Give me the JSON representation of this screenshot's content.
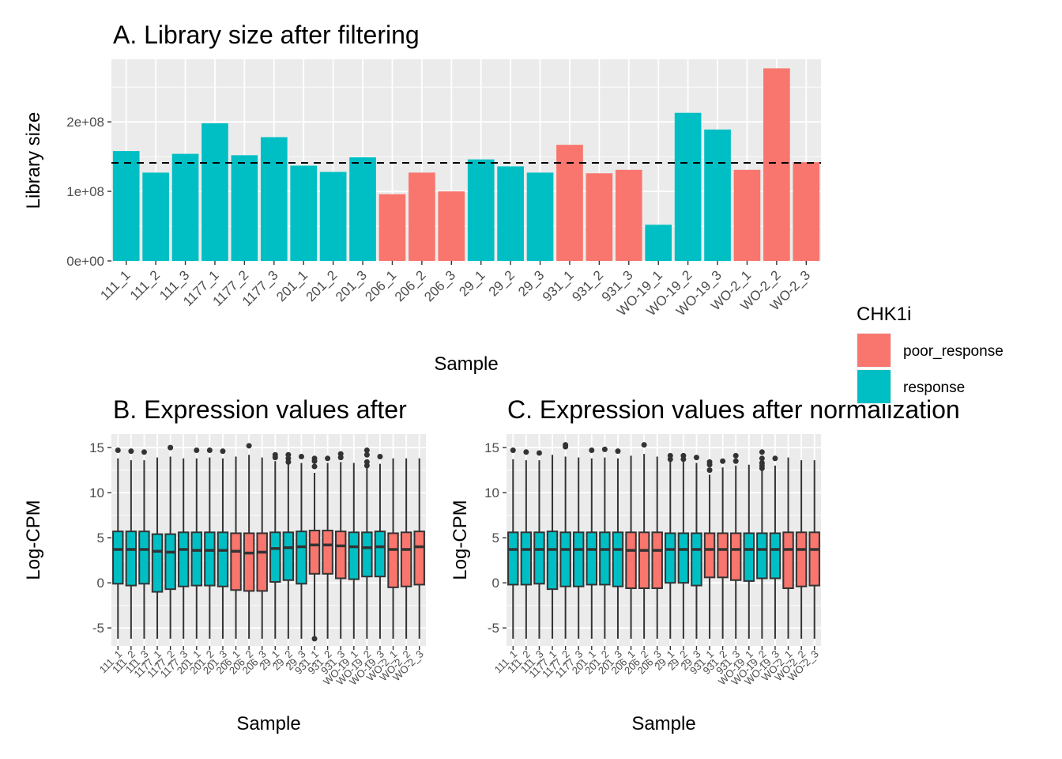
{
  "legend": {
    "title": "CHK1i",
    "entries": [
      {
        "label": "poor_response",
        "color": "#F8766D"
      },
      {
        "label": "response",
        "color": "#00BFC4"
      }
    ]
  },
  "chart_data": [
    {
      "type": "bar",
      "title": "A. Library size after filtering",
      "xlabel": "Sample",
      "ylabel": "Library size",
      "ylim": [
        0,
        290000000
      ],
      "yticks": [
        0,
        100000000,
        200000000
      ],
      "ytick_labels": [
        "0e+00",
        "1e+08",
        "2e+08"
      ],
      "categories": [
        "111_1",
        "111_2",
        "111_3",
        "1177_1",
        "1177_2",
        "1177_3",
        "201_1",
        "201_2",
        "201_3",
        "206_1",
        "206_2",
        "206_3",
        "29_1",
        "29_2",
        "29_3",
        "931_1",
        "931_2",
        "931_3",
        "WO-19_1",
        "WO-19_2",
        "WO-19_3",
        "WO-2_1",
        "WO-2_2",
        "WO-2_3"
      ],
      "values": [
        158000000,
        127000000,
        154000000,
        198000000,
        152000000,
        178000000,
        137000000,
        128000000,
        149000000,
        96000000,
        127000000,
        100000000,
        146000000,
        136000000,
        127000000,
        167000000,
        126000000,
        131000000,
        52000000,
        213000000,
        189000000,
        131000000,
        277000000,
        142000000
      ],
      "groups": [
        "response",
        "response",
        "response",
        "response",
        "response",
        "response",
        "response",
        "response",
        "response",
        "poor_response",
        "poor_response",
        "poor_response",
        "response",
        "response",
        "response",
        "poor_response",
        "poor_response",
        "poor_response",
        "response",
        "response",
        "response",
        "poor_response",
        "poor_response",
        "poor_response"
      ],
      "reference_line": 141000000,
      "grid": true
    },
    {
      "type": "box",
      "title": "B. Expression values after",
      "xlabel": "Sample",
      "ylabel": "Log-CPM",
      "ylim": [
        -7,
        16.5
      ],
      "yticks": [
        -5,
        0,
        5,
        10,
        15
      ],
      "ytick_labels": [
        "-5",
        "0",
        "5",
        "10",
        "15"
      ],
      "categories": [
        "111_1",
        "111_2",
        "111_3",
        "1177_1",
        "1177_2",
        "1177_3",
        "201_1",
        "201_2",
        "201_3",
        "206_1",
        "206_2",
        "206_3",
        "29_1",
        "29_2",
        "29_3",
        "931_1",
        "931_2",
        "931_3",
        "WO-19_1",
        "WO-19_2",
        "WO-19_3",
        "WO-2_1",
        "WO-2_2",
        "WO-2_3"
      ],
      "groups": [
        "response",
        "response",
        "response",
        "response",
        "response",
        "response",
        "response",
        "response",
        "response",
        "poor_response",
        "poor_response",
        "poor_response",
        "response",
        "response",
        "response",
        "poor_response",
        "poor_response",
        "poor_response",
        "response",
        "response",
        "response",
        "poor_response",
        "poor_response",
        "poor_response"
      ],
      "boxes": [
        {
          "lower": -6.2,
          "q1": -0.1,
          "median": 3.7,
          "q3": 5.7,
          "upper": 13.8,
          "outliers": [
            14.7
          ]
        },
        {
          "lower": -6.2,
          "q1": -0.3,
          "median": 3.7,
          "q3": 5.7,
          "upper": 13.6,
          "outliers": [
            14.6
          ]
        },
        {
          "lower": -6.2,
          "q1": -0.1,
          "median": 3.7,
          "q3": 5.7,
          "upper": 13.6,
          "outliers": [
            14.5
          ]
        },
        {
          "lower": -6.2,
          "q1": -1.0,
          "median": 3.5,
          "q3": 5.4,
          "upper": 13.9,
          "outliers": []
        },
        {
          "lower": -6.2,
          "q1": -0.7,
          "median": 3.4,
          "q3": 5.4,
          "upper": 14.0,
          "outliers": [
            15.0
          ]
        },
        {
          "lower": -6.2,
          "q1": -0.4,
          "median": 3.7,
          "q3": 5.6,
          "upper": 13.8,
          "outliers": []
        },
        {
          "lower": -6.2,
          "q1": -0.3,
          "median": 3.6,
          "q3": 5.6,
          "upper": 13.8,
          "outliers": [
            14.7
          ]
        },
        {
          "lower": -6.2,
          "q1": -0.3,
          "median": 3.6,
          "q3": 5.6,
          "upper": 13.9,
          "outliers": [
            14.7
          ]
        },
        {
          "lower": -6.2,
          "q1": -0.4,
          "median": 3.6,
          "q3": 5.6,
          "upper": 13.8,
          "outliers": [
            14.6
          ]
        },
        {
          "lower": -6.2,
          "q1": -0.8,
          "median": 3.5,
          "q3": 5.5,
          "upper": 14.0,
          "outliers": []
        },
        {
          "lower": -6.2,
          "q1": -0.9,
          "median": 3.3,
          "q3": 5.5,
          "upper": 14.2,
          "outliers": [
            15.2
          ]
        },
        {
          "lower": -6.2,
          "q1": -0.9,
          "median": 3.4,
          "q3": 5.5,
          "upper": 13.9,
          "outliers": []
        },
        {
          "lower": -6.2,
          "q1": 0.1,
          "median": 3.8,
          "q3": 5.6,
          "upper": 13.5,
          "outliers": [
            14.2,
            13.9
          ]
        },
        {
          "lower": -6.2,
          "q1": 0.3,
          "median": 3.9,
          "q3": 5.6,
          "upper": 13.3,
          "outliers": [
            14.2,
            13.8,
            13.4
          ]
        },
        {
          "lower": -6.2,
          "q1": -0.1,
          "median": 4.0,
          "q3": 5.7,
          "upper": 13.3,
          "outliers": [
            14.0
          ]
        },
        {
          "lower": -6.0,
          "q1": 1.0,
          "median": 4.2,
          "q3": 5.8,
          "upper": 12.2,
          "outliers": [
            13.8,
            13.5,
            12.9,
            -6.2
          ]
        },
        {
          "lower": -6.2,
          "q1": 1.0,
          "median": 4.2,
          "q3": 5.8,
          "upper": 13.3,
          "outliers": [
            13.8
          ]
        },
        {
          "lower": -6.2,
          "q1": 0.5,
          "median": 4.1,
          "q3": 5.7,
          "upper": 13.4,
          "outliers": [
            14.3,
            13.9
          ]
        },
        {
          "lower": -6.2,
          "q1": 0.4,
          "median": 4.0,
          "q3": 5.6,
          "upper": 13.3,
          "outliers": []
        },
        {
          "lower": -6.2,
          "q1": 0.7,
          "median": 3.9,
          "q3": 5.6,
          "upper": 13.5,
          "outliers": [
            14.7,
            14.2,
            13.4,
            13.0
          ]
        },
        {
          "lower": -6.2,
          "q1": 0.7,
          "median": 4.0,
          "q3": 5.7,
          "upper": 13.2,
          "outliers": [
            14.0
          ]
        },
        {
          "lower": -6.2,
          "q1": -0.5,
          "median": 3.7,
          "q3": 5.5,
          "upper": 13.8,
          "outliers": []
        },
        {
          "lower": -6.2,
          "q1": -0.4,
          "median": 3.7,
          "q3": 5.6,
          "upper": 13.8,
          "outliers": []
        },
        {
          "lower": -6.2,
          "q1": -0.2,
          "median": 4.0,
          "q3": 5.7,
          "upper": 13.8,
          "outliers": []
        }
      ],
      "grid": true
    },
    {
      "type": "box",
      "title": "C. Expression values after normalization",
      "xlabel": "Sample",
      "ylabel": "Log-CPM",
      "ylim": [
        -7,
        16.5
      ],
      "yticks": [
        -5,
        0,
        5,
        10,
        15
      ],
      "ytick_labels": [
        "-5",
        "0",
        "5",
        "10",
        "15"
      ],
      "categories": [
        "111_1",
        "111_2",
        "111_3",
        "1177_1",
        "1177_2",
        "1177_3",
        "201_1",
        "201_2",
        "201_3",
        "206_1",
        "206_2",
        "206_3",
        "29_1",
        "29_2",
        "29_3",
        "931_1",
        "931_2",
        "931_3",
        "WO-19_1",
        "WO-19_2",
        "WO-19_3",
        "WO-2_1",
        "WO-2_2",
        "WO-2_3"
      ],
      "groups": [
        "response",
        "response",
        "response",
        "response",
        "response",
        "response",
        "response",
        "response",
        "response",
        "poor_response",
        "poor_response",
        "poor_response",
        "response",
        "response",
        "response",
        "poor_response",
        "poor_response",
        "poor_response",
        "response",
        "response",
        "response",
        "poor_response",
        "poor_response",
        "poor_response"
      ],
      "boxes": [
        {
          "lower": -6.2,
          "q1": -0.2,
          "median": 3.7,
          "q3": 5.6,
          "upper": 13.7,
          "outliers": [
            14.7
          ]
        },
        {
          "lower": -6.2,
          "q1": -0.2,
          "median": 3.7,
          "q3": 5.6,
          "upper": 13.6,
          "outliers": [
            14.5
          ]
        },
        {
          "lower": -6.2,
          "q1": -0.1,
          "median": 3.7,
          "q3": 5.6,
          "upper": 13.6,
          "outliers": [
            14.4
          ]
        },
        {
          "lower": -6.2,
          "q1": -0.7,
          "median": 3.7,
          "q3": 5.7,
          "upper": 14.2,
          "outliers": []
        },
        {
          "lower": -6.2,
          "q1": -0.4,
          "median": 3.7,
          "q3": 5.6,
          "upper": 14.0,
          "outliers": [
            15.3,
            15.1
          ]
        },
        {
          "lower": -6.2,
          "q1": -0.4,
          "median": 3.7,
          "q3": 5.6,
          "upper": 13.9,
          "outliers": []
        },
        {
          "lower": -6.2,
          "q1": -0.2,
          "median": 3.7,
          "q3": 5.6,
          "upper": 13.8,
          "outliers": [
            14.7
          ]
        },
        {
          "lower": -6.2,
          "q1": -0.2,
          "median": 3.7,
          "q3": 5.6,
          "upper": 13.9,
          "outliers": [
            14.8
          ]
        },
        {
          "lower": -6.2,
          "q1": -0.4,
          "median": 3.7,
          "q3": 5.6,
          "upper": 13.8,
          "outliers": [
            14.6
          ]
        },
        {
          "lower": -6.2,
          "q1": -0.6,
          "median": 3.6,
          "q3": 5.6,
          "upper": 14.1,
          "outliers": []
        },
        {
          "lower": -6.2,
          "q1": -0.6,
          "median": 3.6,
          "q3": 5.6,
          "upper": 14.3,
          "outliers": [
            15.3
          ]
        },
        {
          "lower": -6.2,
          "q1": -0.6,
          "median": 3.6,
          "q3": 5.6,
          "upper": 14.0,
          "outliers": []
        },
        {
          "lower": -6.2,
          "q1": 0.0,
          "median": 3.7,
          "q3": 5.5,
          "upper": 13.5,
          "outliers": [
            14.1,
            13.7
          ]
        },
        {
          "lower": -6.2,
          "q1": 0.0,
          "median": 3.7,
          "q3": 5.5,
          "upper": 13.4,
          "outliers": [
            14.1,
            13.7
          ]
        },
        {
          "lower": -6.2,
          "q1": -0.3,
          "median": 3.7,
          "q3": 5.5,
          "upper": 13.3,
          "outliers": [
            13.9
          ]
        },
        {
          "lower": -6.2,
          "q1": 0.6,
          "median": 3.7,
          "q3": 5.5,
          "upper": 12.0,
          "outliers": [
            13.4,
            13.1,
            12.5
          ]
        },
        {
          "lower": -6.2,
          "q1": 0.6,
          "median": 3.7,
          "q3": 5.5,
          "upper": 12.8,
          "outliers": [
            13.5
          ]
        },
        {
          "lower": -6.2,
          "q1": 0.3,
          "median": 3.7,
          "q3": 5.5,
          "upper": 13.0,
          "outliers": [
            14.1,
            13.5
          ]
        },
        {
          "lower": -6.2,
          "q1": 0.2,
          "median": 3.7,
          "q3": 5.5,
          "upper": 13.1,
          "outliers": []
        },
        {
          "lower": -6.2,
          "q1": 0.5,
          "median": 3.7,
          "q3": 5.5,
          "upper": 12.9,
          "outliers": [
            14.5,
            13.8,
            13.3,
            13.0,
            12.7
          ]
        },
        {
          "lower": -6.2,
          "q1": 0.5,
          "median": 3.7,
          "q3": 5.5,
          "upper": 13.0,
          "outliers": [
            13.8
          ]
        },
        {
          "lower": -6.2,
          "q1": -0.6,
          "median": 3.7,
          "q3": 5.6,
          "upper": 13.9,
          "outliers": []
        },
        {
          "lower": -6.2,
          "q1": -0.4,
          "median": 3.7,
          "q3": 5.6,
          "upper": 13.6,
          "outliers": []
        },
        {
          "lower": -6.2,
          "q1": -0.3,
          "median": 3.7,
          "q3": 5.6,
          "upper": 13.6,
          "outliers": []
        }
      ],
      "grid": true
    }
  ]
}
